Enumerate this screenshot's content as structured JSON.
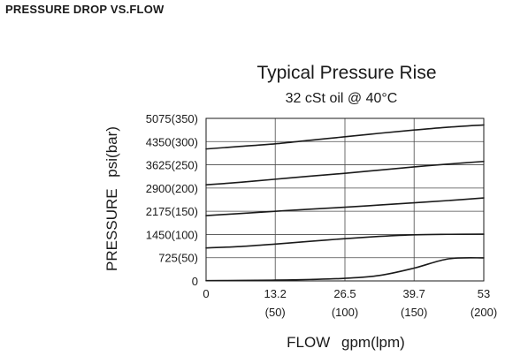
{
  "page": {
    "heading": "PRESSURE DROP VS.FLOW"
  },
  "chart_data": {
    "type": "line",
    "title": "Typical Pressure Rise",
    "subtitle": "32 cSt oil @ 40°C",
    "xlabel_main": "FLOW",
    "xlabel_units": "gpm(lpm)",
    "ylabel_main": "PRESSURE",
    "ylabel_units": "psi(bar)",
    "xlim": [
      0,
      53
    ],
    "ylim": [
      0,
      5075
    ],
    "x_ticks": [
      0,
      13.2,
      26.5,
      39.7,
      53
    ],
    "x_tick_labels": [
      "0",
      "13.2",
      "26.5",
      "39.7",
      "53"
    ],
    "x_tick_sublabels": [
      "",
      "(50)",
      "(100)",
      "(150)",
      "(200)"
    ],
    "y_ticks": [
      0,
      725,
      1450,
      2175,
      2900,
      3625,
      4350,
      5075
    ],
    "y_tick_labels": [
      "0",
      "725(50)",
      "1450(100)",
      "2175(150)",
      "2900(200)",
      "3625(250)",
      "4350(300)",
      "5075(350)"
    ],
    "grid": true,
    "series": [
      {
        "x": [
          0,
          6.6,
          13.2,
          19.8,
          26.5,
          33.1,
          39.7,
          46.3,
          53
        ],
        "y": [
          10,
          15,
          25,
          45,
          80,
          170,
          400,
          690,
          720
        ]
      },
      {
        "x": [
          0,
          6.6,
          13.2,
          19.8,
          26.5,
          33.1,
          39.7,
          46.3,
          53
        ],
        "y": [
          1030,
          1075,
          1150,
          1235,
          1320,
          1390,
          1440,
          1455,
          1460
        ]
      },
      {
        "x": [
          0,
          6.6,
          13.2,
          19.8,
          26.5,
          33.1,
          39.7,
          46.3,
          53
        ],
        "y": [
          2040,
          2105,
          2175,
          2240,
          2300,
          2370,
          2440,
          2510,
          2590
        ]
      },
      {
        "x": [
          0,
          6.6,
          13.2,
          19.8,
          26.5,
          33.1,
          39.7,
          46.3,
          53
        ],
        "y": [
          3000,
          3080,
          3175,
          3270,
          3360,
          3460,
          3560,
          3650,
          3730
        ]
      },
      {
        "x": [
          0,
          6.6,
          13.2,
          19.8,
          26.5,
          33.1,
          39.7,
          46.3,
          53
        ],
        "y": [
          4120,
          4200,
          4280,
          4390,
          4500,
          4610,
          4710,
          4800,
          4870
        ]
      }
    ],
    "colors": {
      "line": "#1a1a1a",
      "grid": "#4a4a4a",
      "frame": "#1a1a1a"
    }
  }
}
